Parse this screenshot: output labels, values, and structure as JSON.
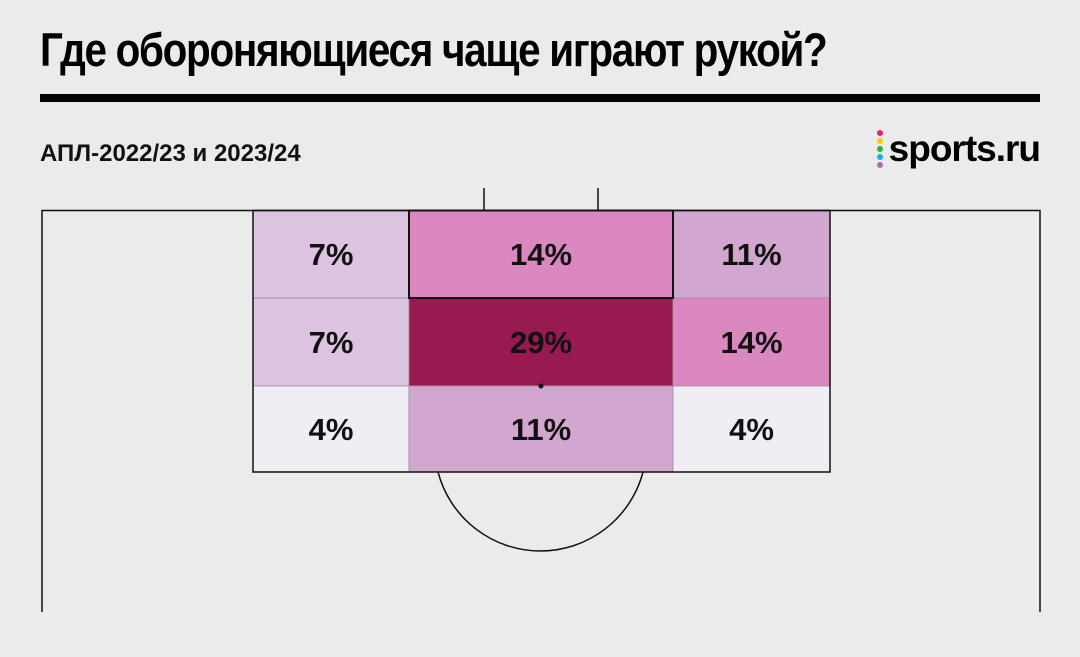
{
  "header": {
    "title": "Где обороняющиеся чаще играют рукой?",
    "subtitle": "АПЛ-2022/23 и 2023/24"
  },
  "logo": {
    "text": "sports.ru",
    "dot_colors": [
      "#ff1a5e",
      "#ffcc00",
      "#22bb33",
      "#10b4f5",
      "#b06ab3"
    ]
  },
  "chart_data": {
    "type": "heatmap",
    "title": "Где обороняющиеся чаще играют рукой?",
    "rows": 3,
    "cols": 3,
    "cells": [
      {
        "row": 0,
        "col": 0,
        "value": 7,
        "label": "7%",
        "color": "#dcc3e0"
      },
      {
        "row": 0,
        "col": 1,
        "value": 14,
        "label": "14%",
        "color": "#db87c0"
      },
      {
        "row": 0,
        "col": 2,
        "value": 11,
        "label": "11%",
        "color": "#d2a7cf"
      },
      {
        "row": 1,
        "col": 0,
        "value": 7,
        "label": "7%",
        "color": "#dcc3e0"
      },
      {
        "row": 1,
        "col": 1,
        "value": 29,
        "label": "29%",
        "color": "#991a50"
      },
      {
        "row": 1,
        "col": 2,
        "value": 14,
        "label": "14%",
        "color": "#db87c0"
      },
      {
        "row": 2,
        "col": 0,
        "value": 4,
        "label": "4%",
        "color": "#f0eef4"
      },
      {
        "row": 2,
        "col": 1,
        "value": 11,
        "label": "11%",
        "color": "#d2a7cf"
      },
      {
        "row": 2,
        "col": 2,
        "value": 4,
        "label": "4%",
        "color": "#f0eef4"
      }
    ]
  }
}
